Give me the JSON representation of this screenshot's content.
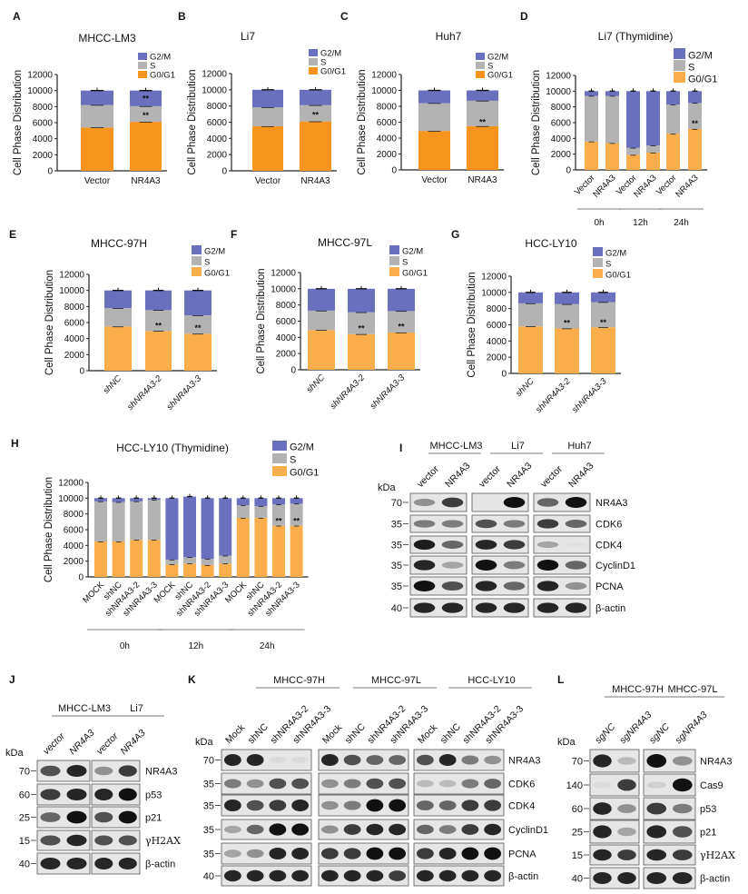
{
  "colors": {
    "g1_dark": "#F7941D",
    "g1_light": "#FAAE4B",
    "s": "#B3B3B3",
    "g2m": "#6A6FBE"
  },
  "chart_data": [
    {
      "panel": "A",
      "type": "bar",
      "stacked": true,
      "title": "MHCC-LM3",
      "ylabel": "Cell Phase Distribution",
      "ylim": [
        0,
        12000
      ],
      "yticks": [
        "0",
        "2000",
        "4000",
        "6000",
        "8000",
        "10000",
        "12000"
      ],
      "legend": [
        "G2/M",
        "S",
        "G0/G1"
      ],
      "categories": [
        "Vector",
        "NR4A3"
      ],
      "series": [
        {
          "name": "G0/G1",
          "values": [
            5400,
            6100
          ]
        },
        {
          "name": "S",
          "values": [
            2800,
            1950
          ]
        },
        {
          "name": "G2/M",
          "values": [
            1800,
            1950
          ]
        }
      ],
      "annotations": [
        {
          "category": 1,
          "y": 6900,
          "text": "**"
        },
        {
          "category": 1,
          "y": 9000,
          "text": "**"
        }
      ],
      "groups": []
    },
    {
      "panel": "B",
      "type": "bar",
      "stacked": true,
      "title": "Li7",
      "ylabel": "Cell Phase Distribution",
      "ylim": [
        0,
        12000
      ],
      "yticks": [
        "0",
        "2000",
        "4000",
        "6000",
        "8000",
        "10000",
        "12000"
      ],
      "legend": [
        "G2/M",
        "S",
        "G0/G1"
      ],
      "categories": [
        "Vector",
        "NR4A3"
      ],
      "series": [
        {
          "name": "G0/G1",
          "values": [
            5500,
            6100
          ]
        },
        {
          "name": "S",
          "values": [
            2350,
            2000
          ]
        },
        {
          "name": "G2/M",
          "values": [
            2150,
            1900
          ]
        }
      ],
      "annotations": [
        {
          "category": 1,
          "y": 6900,
          "text": "**"
        }
      ],
      "groups": []
    },
    {
      "panel": "C",
      "type": "bar",
      "stacked": true,
      "title": "Huh7",
      "ylabel": "Cell Phase Distribution",
      "ylim": [
        0,
        12000
      ],
      "yticks": [
        "0",
        "2000",
        "4000",
        "6000",
        "8000",
        "10000",
        "12000"
      ],
      "legend": [
        "G2/M",
        "S",
        "G0/G1"
      ],
      "categories": [
        "Vector",
        "NR4A3"
      ],
      "series": [
        {
          "name": "G0/G1",
          "values": [
            4900,
            5500
          ]
        },
        {
          "name": "S",
          "values": [
            3500,
            3200
          ]
        },
        {
          "name": "G2/M",
          "values": [
            1600,
            1300
          ]
        }
      ],
      "annotations": [
        {
          "category": 1,
          "y": 6000,
          "text": "**"
        }
      ],
      "groups": []
    },
    {
      "panel": "D",
      "type": "bar",
      "stacked": true,
      "title": "Li7   (Thymidine)",
      "ylabel": "Cell Phase Distribution",
      "ylim": [
        0,
        12000
      ],
      "yticks": [
        "0",
        "2000",
        "4000",
        "6000",
        "8000",
        "10000",
        "12000"
      ],
      "legend": [
        "G2/M",
        "S",
        "G0/G1"
      ],
      "categories": [
        "Vector",
        "NR4A3",
        "Vector",
        "NR4A3",
        "Vector",
        "NR4A3"
      ],
      "series": [
        {
          "name": "G0/G1",
          "values": [
            3600,
            3400,
            1900,
            2200,
            4600,
            5200
          ]
        },
        {
          "name": "S",
          "values": [
            5800,
            6000,
            900,
            900,
            3700,
            3300
          ]
        },
        {
          "name": "G2/M",
          "values": [
            600,
            600,
            7200,
            6900,
            1700,
            1500
          ]
        }
      ],
      "annotations": [
        {
          "category": 5,
          "y": 5900,
          "text": "**"
        }
      ],
      "groups": [
        {
          "label": "0h",
          "from": 0,
          "to": 1
        },
        {
          "label": "12h",
          "from": 2,
          "to": 3
        },
        {
          "label": "24h",
          "from": 4,
          "to": 5
        }
      ]
    },
    {
      "panel": "E",
      "type": "bar",
      "stacked": true,
      "title": "MHCC-97H",
      "ylabel": "Cell Phase Distribution",
      "ylim": [
        0,
        12000
      ],
      "yticks": [
        "0",
        "2000",
        "4000",
        "6000",
        "8000",
        "10000",
        "12000"
      ],
      "legend": [
        "G2/M",
        "S",
        "G0/G1"
      ],
      "categories": [
        "shNC",
        "shNR4A3-2",
        "shNR4A3-3"
      ],
      "series": [
        {
          "name": "G0/G1",
          "values": [
            5500,
            4950,
            4600
          ]
        },
        {
          "name": "S",
          "values": [
            2300,
            2600,
            2300
          ]
        },
        {
          "name": "G2/M",
          "values": [
            2200,
            2450,
            3100
          ]
        }
      ],
      "annotations": [
        {
          "category": 1,
          "y": 5600,
          "text": "**"
        },
        {
          "category": 2,
          "y": 5300,
          "text": "**"
        }
      ],
      "groups": []
    },
    {
      "panel": "F",
      "type": "bar",
      "stacked": true,
      "title": "MHCC-97L",
      "ylabel": "Cell Phase Distribution",
      "ylim": [
        0,
        12000
      ],
      "yticks": [
        "0",
        "2000",
        "4000",
        "6000",
        "8000",
        "10000",
        "12000"
      ],
      "legend": [
        "G2/M",
        "S",
        "G0/G1"
      ],
      "categories": [
        "shNC",
        "shNR4A3-2",
        "shNR4A3-3"
      ],
      "series": [
        {
          "name": "G0/G1",
          "values": [
            4900,
            4400,
            4600
          ]
        },
        {
          "name": "S",
          "values": [
            2400,
            2700,
            2650
          ]
        },
        {
          "name": "G2/M",
          "values": [
            2700,
            2900,
            2750
          ]
        }
      ],
      "annotations": [
        {
          "category": 1,
          "y": 5100,
          "text": "**"
        },
        {
          "category": 2,
          "y": 5300,
          "text": "**"
        }
      ],
      "groups": []
    },
    {
      "panel": "G",
      "type": "bar",
      "stacked": true,
      "title": "HCC-LY10",
      "ylabel": "Cell Phase Distribution",
      "ylim": [
        0,
        12000
      ],
      "yticks": [
        "0",
        "2000",
        "4000",
        "6000",
        "8000",
        "10000",
        "12000"
      ],
      "legend": [
        "G2/M",
        "S",
        "G0/G1"
      ],
      "categories": [
        "shNC",
        "shNR4A3-2",
        "shNR4A3-3"
      ],
      "series": [
        {
          "name": "G0/G1",
          "values": [
            5800,
            5550,
            5700
          ]
        },
        {
          "name": "S",
          "values": [
            2850,
            3000,
            3100
          ]
        },
        {
          "name": "G2/M",
          "values": [
            1350,
            1450,
            1200
          ]
        }
      ],
      "annotations": [
        {
          "category": 1,
          "y": 6200,
          "text": "**"
        },
        {
          "category": 2,
          "y": 6300,
          "text": "**"
        }
      ],
      "groups": []
    },
    {
      "panel": "H",
      "type": "bar",
      "stacked": true,
      "title": "HCC-LY10 (Thymidine)",
      "ylabel": "Cell Phase Distribution",
      "ylim": [
        0,
        12000
      ],
      "yticks": [
        "0",
        "2000",
        "4000",
        "6000",
        "8000",
        "10000",
        "12000"
      ],
      "legend": [
        "G2/M",
        "S",
        "G0/G1"
      ],
      "categories": [
        "MOCK",
        "shNC",
        "shNR4A3-2",
        "shNR4A3-3",
        "MOCK",
        "shNC",
        "shNR4A3-2",
        "shNR4A3-3",
        "MOCK",
        "shNC",
        "shNR4A3-2",
        "shNR4A3-3"
      ],
      "series": [
        {
          "name": "G0/G1",
          "values": [
            4500,
            4500,
            4700,
            4700,
            1600,
            1700,
            1500,
            1700,
            7500,
            7500,
            6500,
            6500
          ]
        },
        {
          "name": "S",
          "values": [
            5100,
            5000,
            4900,
            5100,
            600,
            800,
            800,
            1000,
            1600,
            1500,
            2700,
            2800
          ]
        },
        {
          "name": "G2/M",
          "values": [
            400,
            500,
            400,
            200,
            7800,
            7700,
            7700,
            7300,
            900,
            1000,
            800,
            700
          ]
        }
      ],
      "annotations": [
        {
          "category": 10,
          "y": 7100,
          "text": "**"
        },
        {
          "category": 11,
          "y": 7100,
          "text": "**"
        }
      ],
      "groups": [
        {
          "label": "0h",
          "from": 0,
          "to": 3
        },
        {
          "label": "12h",
          "from": 4,
          "to": 7
        },
        {
          "label": "24h",
          "from": 8,
          "to": 11
        }
      ]
    }
  ],
  "blots": [
    {
      "panel": "I",
      "kda_label": "kDa",
      "groups": [
        {
          "name": "MHCC-LM3",
          "lanes": [
            "vector",
            "NR4A3"
          ]
        },
        {
          "name": "Li7",
          "lanes": [
            "vector",
            "NR4A3"
          ]
        },
        {
          "name": "Huh7",
          "lanes": [
            "vector",
            "NR4A3"
          ]
        }
      ],
      "rows": [
        {
          "kda": "70",
          "protein": "NR4A3",
          "bands": [
            [
              0.4,
              0.8
            ],
            [
              0.0,
              1.0
            ],
            [
              0.6,
              1.0
            ]
          ]
        },
        {
          "kda": "35",
          "protein": "CDK6",
          "bands": [
            [
              0.5,
              0.5
            ],
            [
              0.7,
              0.5
            ],
            [
              0.8,
              0.6
            ]
          ]
        },
        {
          "kda": "35",
          "protein": "CDK4",
          "bands": [
            [
              0.95,
              0.6
            ],
            [
              0.9,
              0.8
            ],
            [
              0.3,
              0.02
            ]
          ]
        },
        {
          "kda": "35",
          "protein": "CyclinD1",
          "bands": [
            [
              0.9,
              0.3
            ],
            [
              1.0,
              0.5
            ],
            [
              1.0,
              0.6
            ]
          ]
        },
        {
          "kda": "35",
          "protein": "PCNA",
          "bands": [
            [
              1.0,
              0.7
            ],
            [
              0.9,
              0.6
            ],
            [
              0.9,
              0.4
            ]
          ]
        },
        {
          "kda": "40",
          "protein": "β-actin",
          "bands": [
            [
              0.9,
              0.9
            ],
            [
              0.9,
              0.9
            ],
            [
              0.9,
              0.9
            ]
          ]
        }
      ]
    },
    {
      "panel": "J",
      "kda_label": "kDa",
      "groups": [
        {
          "name": "MHCC-LM3",
          "lanes": [
            "vector",
            "NR4A3"
          ]
        },
        {
          "name": "Li7",
          "lanes": [
            "vector",
            "NR4A3"
          ]
        }
      ],
      "rows": [
        {
          "kda": "70",
          "protein": "NR4A3",
          "bands": [
            [
              0.7,
              0.9
            ],
            [
              0.4,
              0.8
            ]
          ]
        },
        {
          "kda": "60",
          "protein": "p53",
          "bands": [
            [
              0.8,
              0.9
            ],
            [
              0.9,
              1.0
            ]
          ]
        },
        {
          "kda": "25",
          "protein": "p21",
          "bands": [
            [
              0.6,
              1.0
            ],
            [
              0.7,
              1.0
            ]
          ]
        },
        {
          "kda": "15",
          "protein": "γH2AX",
          "bands": [
            [
              0.7,
              0.9
            ],
            [
              0.7,
              0.7
            ]
          ]
        },
        {
          "kda": "40",
          "protein": "β-actin",
          "bands": [
            [
              0.9,
              0.9
            ],
            [
              0.9,
              0.9
            ]
          ]
        }
      ]
    },
    {
      "panel": "K",
      "kda_label": "kDa",
      "groups": [
        {
          "name": "MHCC-97H",
          "lanes": [
            "Mock",
            "shNC",
            "shNR4A3-2",
            "shNR4A3-3"
          ]
        },
        {
          "name": "MHCC-97L",
          "lanes": [
            "Mock",
            "shNC",
            "shNR4A3-2",
            "shNR4A3-3"
          ]
        },
        {
          "name": "HCC-LY10",
          "lanes": [
            "Mock",
            "shNC",
            "shNR4A3-2",
            "shNR4A3-3"
          ]
        }
      ],
      "rows": [
        {
          "kda": "70",
          "protein": "NR4A3",
          "bands": [
            [
              0.9,
              0.9,
              0.05,
              0.05
            ],
            [
              0.9,
              0.7,
              0.6,
              0.6
            ],
            [
              0.7,
              0.9,
              0.5,
              0.4
            ]
          ]
        },
        {
          "kda": "35",
          "protein": "CDK6",
          "bands": [
            [
              0.5,
              0.4,
              0.7,
              0.7
            ],
            [
              0.4,
              0.5,
              0.7,
              0.7
            ],
            [
              0.2,
              0.2,
              0.5,
              0.6
            ]
          ]
        },
        {
          "kda": "35",
          "protein": "CDK4",
          "bands": [
            [
              0.9,
              0.7,
              0.8,
              0.9
            ],
            [
              0.4,
              0.5,
              1.0,
              1.0
            ],
            [
              0.6,
              0.6,
              0.8,
              0.8
            ]
          ]
        },
        {
          "kda": "35",
          "protein": "CyclinD1",
          "bands": [
            [
              0.3,
              0.6,
              1.0,
              1.0
            ],
            [
              0.4,
              0.8,
              0.9,
              0.9
            ],
            [
              0.6,
              0.5,
              0.8,
              0.9
            ]
          ]
        },
        {
          "kda": "35",
          "protein": "PCNA",
          "bands": [
            [
              0.3,
              0.4,
              0.9,
              0.9
            ],
            [
              0.8,
              0.8,
              1.0,
              1.0
            ],
            [
              0.8,
              0.9,
              1.0,
              1.0
            ]
          ]
        },
        {
          "kda": "40",
          "protein": "β-actin",
          "bands": [
            [
              0.9,
              0.9,
              0.9,
              0.9
            ],
            [
              0.9,
              0.9,
              0.9,
              0.8
            ],
            [
              0.9,
              0.9,
              0.9,
              0.9
            ]
          ]
        }
      ]
    },
    {
      "panel": "L",
      "kda_label": "kDa",
      "groups": [
        {
          "name": "MHCC-97H",
          "lanes": [
            "sgNC",
            "sgNR4A3"
          ]
        },
        {
          "name": "MHCC-97L",
          "lanes": [
            "sgNC",
            "sgNR4A3"
          ]
        }
      ],
      "rows": [
        {
          "kda": "70",
          "protein": "NR4A3",
          "bands": [
            [
              0.9,
              0.2
            ],
            [
              1.0,
              0.4
            ]
          ]
        },
        {
          "kda": "140",
          "protein": "Cas9",
          "bands": [
            [
              0.05,
              0.8
            ],
            [
              0.1,
              1.0
            ]
          ]
        },
        {
          "kda": "60",
          "protein": "p53",
          "bands": [
            [
              0.9,
              0.4
            ],
            [
              0.8,
              0.5
            ]
          ]
        },
        {
          "kda": "25",
          "protein": "p21",
          "bands": [
            [
              0.9,
              0.3
            ],
            [
              0.9,
              0.7
            ]
          ]
        },
        {
          "kda": "15",
          "protein": "γH2AX",
          "bands": [
            [
              0.9,
              0.8
            ],
            [
              0.9,
              0.8
            ]
          ]
        },
        {
          "kda": "40",
          "protein": "β-actin",
          "bands": [
            [
              0.9,
              0.9
            ],
            [
              0.9,
              0.9
            ]
          ]
        }
      ]
    }
  ]
}
